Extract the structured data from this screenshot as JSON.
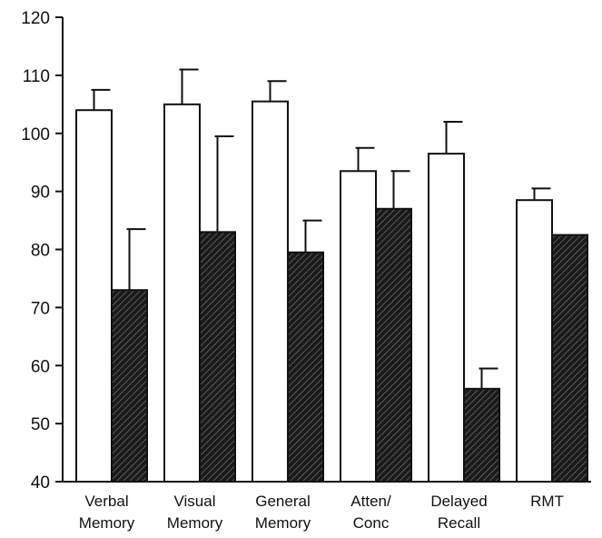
{
  "chart_data": {
    "type": "bar",
    "title": "",
    "xlabel": "",
    "ylabel": "",
    "ylim": [
      40,
      120
    ],
    "yticks": [
      40,
      50,
      60,
      70,
      80,
      90,
      100,
      110,
      120
    ],
    "grid": false,
    "legend": "none",
    "categories": [
      [
        "Verbal",
        "Memory"
      ],
      [
        "Visual",
        "Memory"
      ],
      [
        "General",
        "Memory"
      ],
      [
        "Atten/",
        "Conc"
      ],
      [
        "Delayed",
        "Recall"
      ],
      [
        "RMT"
      ]
    ],
    "series": [
      {
        "values": [
          104,
          105,
          105.5,
          93.5,
          96.5,
          88.5
        ],
        "error": [
          3.5,
          6,
          3.5,
          4,
          5.5,
          2
        ],
        "color": "#ffffff"
      },
      {
        "values": [
          73,
          83,
          79.5,
          87,
          56,
          82.5
        ],
        "error": [
          10.5,
          16.5,
          5.5,
          6.5,
          3.5,
          null
        ],
        "color": "#1a1a1a",
        "pattern": "diagonal-hatch"
      }
    ]
  }
}
